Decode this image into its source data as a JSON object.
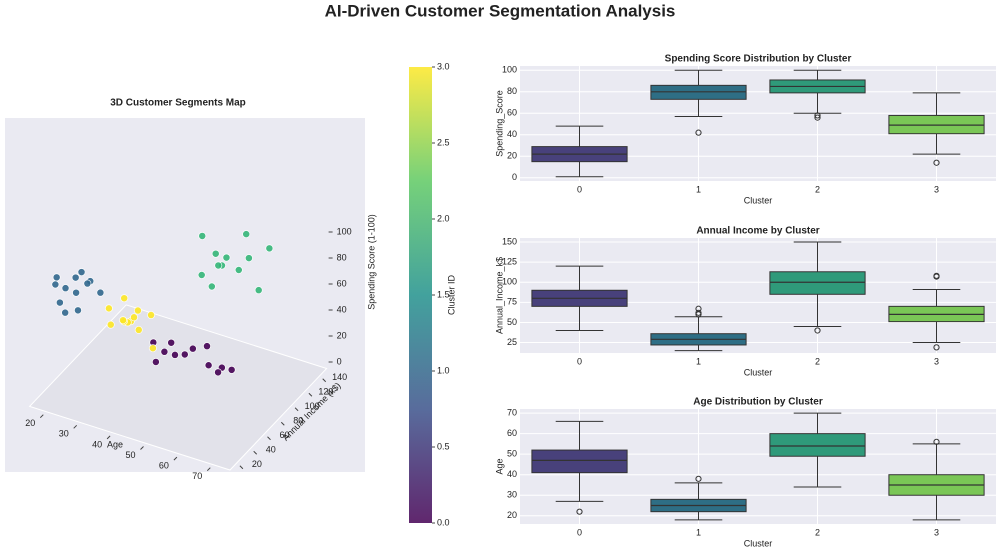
{
  "title": "AI-Driven Customer Segmentation Analysis",
  "chart_data": [
    {
      "type": "scatter3d",
      "title": "3D Customer Segments Map",
      "xlabel": "Age",
      "ylabel": "Annual Income (k$)",
      "zlabel": "Spending Score (1-100)",
      "xlim": [
        15,
        75
      ],
      "xticks": [
        20,
        30,
        40,
        50,
        60,
        70
      ],
      "ylim": [
        10,
        150
      ],
      "yticks": [
        20,
        40,
        60,
        80,
        100,
        120,
        140
      ],
      "zlim": [
        -5,
        105
      ],
      "zticks": [
        0,
        20,
        40,
        60,
        80,
        100
      ],
      "series": [
        {
          "color": "#440154",
          "x": [
            47,
            40,
            52,
            55,
            44,
            60,
            38,
            50,
            45,
            58,
            42,
            49
          ],
          "y": [
            80,
            72,
            88,
            95,
            65,
            85,
            78,
            100,
            70,
            75,
            90,
            82
          ],
          "z": [
            22,
            15,
            28,
            10,
            30,
            18,
            25,
            5,
            35,
            20,
            12,
            27
          ]
        },
        {
          "color": "#31688e",
          "x": [
            25,
            22,
            28,
            20,
            30,
            24,
            26,
            19,
            23,
            27,
            21,
            29
          ],
          "y": [
            29,
            20,
            35,
            25,
            40,
            18,
            32,
            28,
            38,
            22,
            33,
            26
          ],
          "z": [
            80,
            75,
            88,
            90,
            78,
            70,
            95,
            82,
            85,
            72,
            78,
            92
          ]
        },
        {
          "color": "#35b779",
          "x": [
            54,
            50,
            60,
            48,
            56,
            62,
            52,
            58,
            45,
            65,
            53,
            57
          ],
          "y": [
            100,
            90,
            110,
            120,
            85,
            130,
            95,
            105,
            115,
            100,
            140,
            92
          ],
          "z": [
            85,
            80,
            90,
            78,
            95,
            88,
            70,
            82,
            92,
            75,
            86,
            98
          ]
        },
        {
          "color": "#fde725",
          "x": [
            35,
            30,
            40,
            32,
            38,
            28,
            42,
            34,
            36,
            31,
            39,
            33
          ],
          "y": [
            60,
            55,
            65,
            70,
            50,
            62,
            58,
            75,
            45,
            68,
            52,
            60
          ],
          "z": [
            49,
            45,
            55,
            40,
            60,
            52,
            35,
            48,
            58,
            42,
            50,
            65
          ]
        }
      ],
      "colorbar": {
        "label": "Cluster ID",
        "lim": [
          0,
          3
        ],
        "colors": [
          "#440154",
          "#3b528b",
          "#21918c",
          "#5ec962",
          "#fde725"
        ],
        "ticks": [
          {
            "value": 0,
            "label": "0.0"
          },
          {
            "value": 0.5,
            "label": "0.5"
          },
          {
            "value": 1,
            "label": "1.0"
          },
          {
            "value": 1.5,
            "label": "1.5"
          },
          {
            "value": 2,
            "label": "2.0"
          },
          {
            "value": 2.5,
            "label": "2.5"
          },
          {
            "value": 3,
            "label": "3.0"
          }
        ]
      }
    },
    {
      "type": "box",
      "title": "Spending Score Distribution by Cluster",
      "xlabel": "Cluster",
      "ylabel": "Spending_Score",
      "categories": [
        "0",
        "1",
        "2",
        "3"
      ],
      "ylim": [
        -3,
        104
      ],
      "yticks": [
        0,
        20,
        40,
        60,
        80,
        100
      ],
      "boxes": [
        {
          "color": "#48417b",
          "whislo": 1,
          "q1": 15,
          "med": 22,
          "q3": 29,
          "whishi": 48,
          "fliers": []
        },
        {
          "color": "#2e6e85",
          "whislo": 57,
          "q1": 73,
          "med": 80,
          "q3": 86,
          "whishi": 100,
          "fliers": [
            42
          ]
        },
        {
          "color": "#2f9a7a",
          "whislo": 60,
          "q1": 79,
          "med": 85,
          "q3": 91,
          "whishi": 100,
          "fliers": [
            56,
            58
          ]
        },
        {
          "color": "#7ac656",
          "whislo": 22,
          "q1": 41,
          "med": 49,
          "q3": 58,
          "whishi": 79,
          "fliers": [
            14
          ]
        }
      ]
    },
    {
      "type": "box",
      "title": "Annual Income by Cluster",
      "xlabel": "Cluster",
      "ylabel": "Annual_Income_k$",
      "categories": [
        "0",
        "1",
        "2",
        "3"
      ],
      "ylim": [
        12,
        155
      ],
      "yticks": [
        25,
        50,
        75,
        100,
        125,
        150
      ],
      "boxes": [
        {
          "color": "#48417b",
          "whislo": 40,
          "q1": 70,
          "med": 80,
          "q3": 90,
          "whishi": 120,
          "fliers": []
        },
        {
          "color": "#2e6e85",
          "whislo": 15,
          "q1": 22,
          "med": 29,
          "q3": 36,
          "whishi": 57,
          "fliers": [
            60,
            62,
            67
          ]
        },
        {
          "color": "#2f9a7a",
          "whislo": 45,
          "q1": 85,
          "med": 100,
          "q3": 113,
          "whishi": 150,
          "fliers": [
            40
          ]
        },
        {
          "color": "#7ac656",
          "whislo": 25,
          "q1": 51,
          "med": 60,
          "q3": 70,
          "whishi": 91,
          "fliers": [
            107,
            108,
            19
          ]
        }
      ]
    },
    {
      "type": "box",
      "title": "Age Distribution by Cluster",
      "xlabel": "Cluster",
      "ylabel": "Age",
      "categories": [
        "0",
        "1",
        "2",
        "3"
      ],
      "ylim": [
        16,
        72
      ],
      "yticks": [
        20,
        30,
        40,
        50,
        60,
        70
      ],
      "boxes": [
        {
          "color": "#48417b",
          "whislo": 27,
          "q1": 41,
          "med": 47,
          "q3": 52,
          "whishi": 66,
          "fliers": [
            22
          ]
        },
        {
          "color": "#2e6e85",
          "whislo": 18,
          "q1": 22,
          "med": 25,
          "q3": 28,
          "whishi": 36,
          "fliers": [
            38
          ]
        },
        {
          "color": "#2f9a7a",
          "whislo": 34,
          "q1": 49,
          "med": 54,
          "q3": 60,
          "whishi": 70,
          "fliers": []
        },
        {
          "color": "#7ac656",
          "whislo": 18,
          "q1": 30,
          "med": 35,
          "q3": 40,
          "whishi": 55,
          "fliers": [
            56
          ]
        }
      ]
    }
  ]
}
